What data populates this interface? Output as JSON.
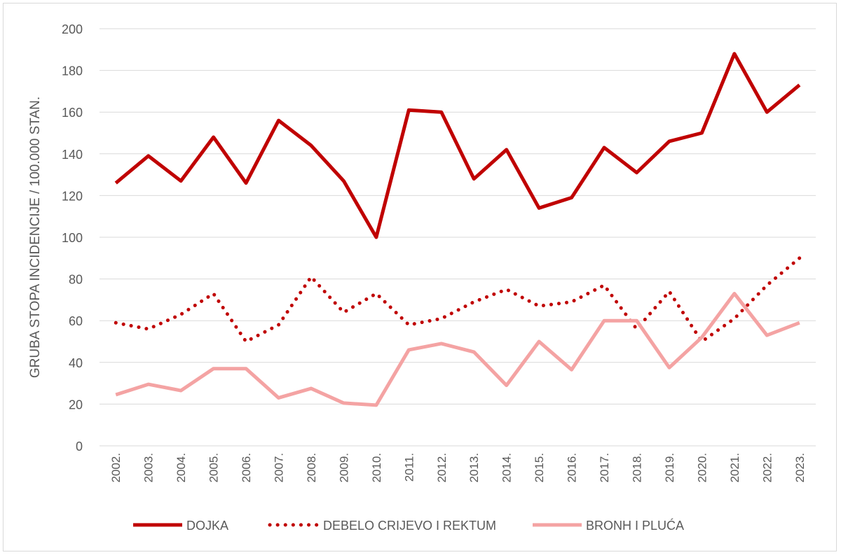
{
  "chart_data": {
    "type": "line",
    "title": "",
    "xlabel": "",
    "ylabel": "GRUBA STOPA INCIDENCIJE / 100.000 STAN.",
    "ylim": [
      0,
      200
    ],
    "yticks": [
      0,
      20,
      40,
      60,
      80,
      100,
      120,
      140,
      160,
      180,
      200
    ],
    "grid": true,
    "legend_position": "bottom",
    "categories": [
      "2002.",
      "2003.",
      "2004.",
      "2005.",
      "2006.",
      "2007.",
      "2008.",
      "2009.",
      "2010.",
      "2011.",
      "2012.",
      "2013.",
      "2014.",
      "2015.",
      "2016.",
      "2017.",
      "2018.",
      "2019.",
      "2020.",
      "2021.",
      "2022.",
      "2023."
    ],
    "series": [
      {
        "name": "DOJKA",
        "color": "#C00000",
        "style": "solid",
        "values": [
          126,
          139,
          127,
          148,
          126,
          156,
          144,
          127,
          100,
          161,
          160,
          128,
          142,
          114,
          119,
          143,
          131,
          146,
          150,
          188,
          160,
          173
        ]
      },
      {
        "name": "DEBELO CRIJEVO I REKTUM",
        "color": "#C00000",
        "style": "dotted",
        "values": [
          59,
          56,
          63,
          73,
          50,
          58,
          81,
          64,
          73,
          58,
          61,
          69,
          75,
          67,
          69,
          77,
          56,
          74,
          50,
          61,
          77,
          90
        ]
      },
      {
        "name": "BRONH I PLUĆA",
        "color": "#F4A3A3",
        "style": "solid",
        "values": [
          24.5,
          29.5,
          26.5,
          37,
          37,
          23,
          27.5,
          20.5,
          19.5,
          46,
          49,
          45,
          29,
          50,
          36.5,
          60,
          60,
          37.5,
          52,
          73,
          53,
          59
        ]
      }
    ]
  }
}
